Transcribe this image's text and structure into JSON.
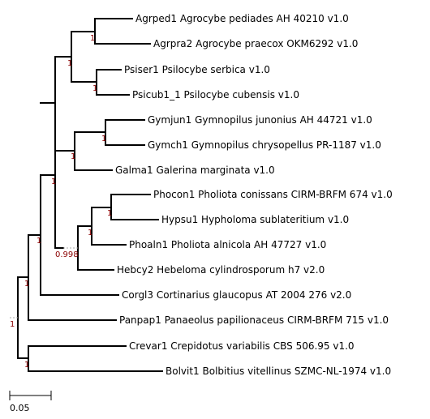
{
  "colors": {
    "branch": "#000000",
    "support": "#8b0000",
    "leaf_label": "#000000"
  },
  "leaves": [
    "Agrped1 Agrocybe pediades AH 40210 v1.0",
    "Agrpra2 Agrocybe praecox OKM6292 v1.0",
    "Psiser1 Psilocybe serbica v1.0",
    "Psicub1_1 Psilocybe cubensis v1.0",
    "Gymjun1 Gymnopilus junonius AH 44721 v1.0",
    "Gymch1 Gymnopilus chrysopellus PR-1187 v1.0",
    "Galma1 Galerina marginata v1.0",
    "Phocon1 Pholiota conissans CIRM-BRFM 674 v1.0",
    "Hypsu1 Hypholoma sublateritium v1.0",
    "Phoaln1 Pholiota alnicola AH 47727 v1.0",
    "Hebcy2 Hebeloma cylindrosporum h7 v2.0",
    "Corgl3 Cortinarius glaucopus AT 2004 276 v2.0",
    "Panpap1 Panaeolus papilionaceus CIRM-BRFM 715 v1.0",
    "Crevar1 Crepidotus variabilis CBS 506.95 v1.0",
    "Bolvit1 Bolbitius vitellinus SZMC-NL-1974 v1.0"
  ],
  "support_values": [
    "1",
    "1",
    "1",
    "1",
    "1",
    "1",
    "1",
    "1",
    "1",
    "0.998",
    "1",
    "1",
    "1",
    "1"
  ],
  "scale_bar": {
    "label": "0.05"
  }
}
